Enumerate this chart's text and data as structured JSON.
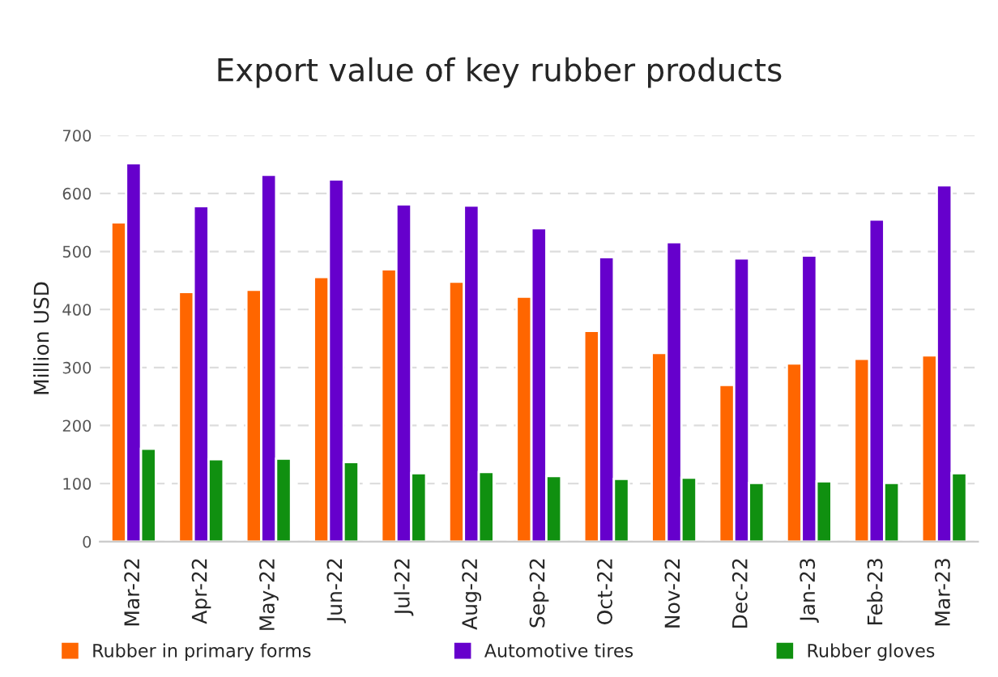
{
  "chart_data": {
    "type": "bar",
    "title": "Export value of key rubber products",
    "ylabel": "Million USD",
    "categories": [
      "Mar-22",
      "Apr-22",
      "May-22",
      "Jun-22",
      "Jul-22",
      "Aug-22",
      "Sep-22",
      "Oct-22",
      "Nov-22",
      "Dec-22",
      "Jan-23",
      "Feb-23",
      "Mar-23"
    ],
    "series": [
      {
        "name": "Rubber in primary forms",
        "color": "#ff6600",
        "values": [
          550,
          430,
          434,
          456,
          469,
          448,
          422,
          363,
          325,
          270,
          307,
          315,
          321
        ]
      },
      {
        "name": "Automotive tires",
        "color": "#6600cc",
        "values": [
          652,
          578,
          632,
          624,
          581,
          579,
          540,
          490,
          516,
          488,
          493,
          555,
          614
        ]
      },
      {
        "name": "Rubber gloves",
        "color": "#109010",
        "values": [
          160,
          142,
          143,
          137,
          118,
          120,
          113,
          108,
          110,
          101,
          104,
          101,
          118
        ]
      }
    ],
    "ylim": [
      0,
      700
    ],
    "yticks": [
      0,
      100,
      200,
      300,
      400,
      500,
      600,
      700
    ],
    "grid": "y",
    "legend": "bottom"
  }
}
